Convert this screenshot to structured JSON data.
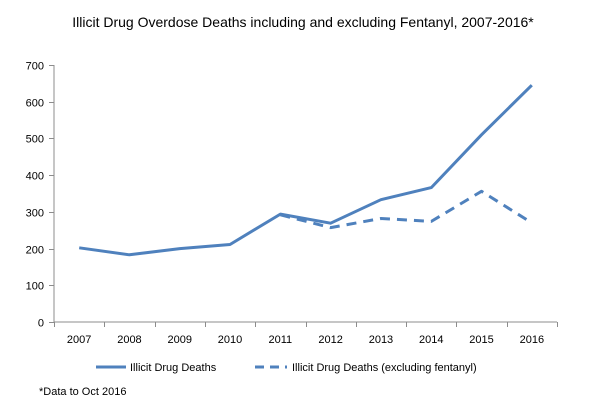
{
  "chart_data": {
    "type": "line",
    "title": "Illicit Drug Overdose Deaths including and excluding Fentanyl, 2007-2016*",
    "xlabel": "",
    "ylabel": "",
    "categories": [
      "2007",
      "2008",
      "2009",
      "2010",
      "2011",
      "2012",
      "2013",
      "2014",
      "2015",
      "2016"
    ],
    "ylim": [
      0,
      700
    ],
    "yticks": [
      0,
      100,
      200,
      300,
      400,
      500,
      600,
      700
    ],
    "grid": false,
    "legend_position": "bottom",
    "series": [
      {
        "name": "Illicit Drug Deaths",
        "style": "solid",
        "color": "#4F81BD",
        "values": [
          202,
          183,
          200,
          211,
          294,
          269,
          333,
          366,
          510,
          645
        ]
      },
      {
        "name": "Illicit Drug Deaths (excluding fentanyl)",
        "style": "dashed",
        "color": "#4F81BD",
        "values": [
          null,
          null,
          null,
          null,
          292,
          257,
          282,
          274,
          356,
          270
        ]
      }
    ],
    "footnote": "*Data to Oct 2016"
  }
}
